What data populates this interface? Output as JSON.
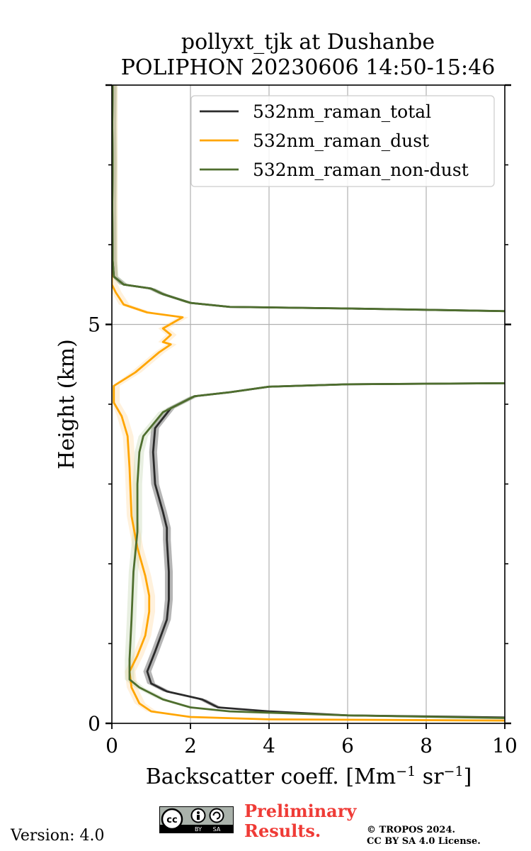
{
  "chart_data": {
    "type": "line",
    "title": "pollyxt_tjk at Dushanbe",
    "subtitle": "POLIPHON 20230606 14:50-15:46",
    "xlabel": "Backscatter coeff. [Mm",
    "xlabel_sup1": "−1",
    "xlabel_mid": " sr",
    "xlabel_sup2": "−1",
    "xlabel_end": "]",
    "ylabel": "Height (km)",
    "xlim": [
      0,
      10
    ],
    "ylim": [
      0,
      8
    ],
    "xticks": [
      0,
      2,
      4,
      6,
      8,
      10
    ],
    "xtick_labels": [
      "0",
      "2",
      "4",
      "6",
      "8",
      "10"
    ],
    "yticks": [
      0,
      5
    ],
    "ytick_labels": [
      "0",
      "5"
    ],
    "yminor_ticks": [
      1,
      2,
      3,
      4,
      6,
      7
    ],
    "grid": true,
    "legend_position": "top-right",
    "series": [
      {
        "name": "532nm_raman_total",
        "color": "#2b2b2b",
        "uncertainty_color": "#2b2b2b",
        "points": [
          [
            12,
            0.06
          ],
          [
            6,
            0.1
          ],
          [
            4,
            0.15
          ],
          [
            2.7,
            0.2
          ],
          [
            2.3,
            0.3
          ],
          [
            1.4,
            0.4
          ],
          [
            1.0,
            0.5
          ],
          [
            0.9,
            0.65
          ],
          [
            1.1,
            0.9
          ],
          [
            1.4,
            1.3
          ],
          [
            1.45,
            1.55
          ],
          [
            1.45,
            1.9
          ],
          [
            1.4,
            2.3
          ],
          [
            1.4,
            2.45
          ],
          [
            1.3,
            2.65
          ],
          [
            1.1,
            3.0
          ],
          [
            1.05,
            3.4
          ],
          [
            1.1,
            3.7
          ],
          [
            1.5,
            3.95
          ],
          [
            2.1,
            4.1
          ],
          [
            3.0,
            4.15
          ],
          [
            4.0,
            4.22
          ],
          [
            6.0,
            4.25
          ],
          [
            12,
            4.27
          ],
          [
            12,
            5.15
          ],
          [
            6.0,
            5.2
          ],
          [
            3.0,
            5.22
          ],
          [
            2.0,
            5.27
          ],
          [
            1.3,
            5.38
          ],
          [
            1.0,
            5.45
          ],
          [
            0.3,
            5.5
          ],
          [
            0.05,
            5.6
          ],
          [
            0.02,
            5.8
          ],
          [
            0.01,
            6.5
          ],
          [
            0.02,
            7.0
          ],
          [
            0.01,
            7.5
          ],
          [
            0.02,
            8.0
          ]
        ],
        "band": [
          0.1,
          0.1
        ]
      },
      {
        "name": "532nm_raman_dust",
        "color": "#ffa500",
        "uncertainty_color": "#ffd89a",
        "points": [
          [
            12,
            0.03
          ],
          [
            4,
            0.05
          ],
          [
            2.0,
            0.08
          ],
          [
            1.0,
            0.15
          ],
          [
            0.7,
            0.25
          ],
          [
            0.5,
            0.45
          ],
          [
            0.45,
            0.65
          ],
          [
            0.65,
            0.85
          ],
          [
            0.85,
            1.1
          ],
          [
            0.95,
            1.4
          ],
          [
            0.95,
            1.6
          ],
          [
            0.85,
            1.85
          ],
          [
            0.65,
            2.2
          ],
          [
            0.5,
            2.6
          ],
          [
            0.45,
            3.2
          ],
          [
            0.4,
            3.6
          ],
          [
            0.25,
            3.85
          ],
          [
            0.05,
            4.02
          ],
          [
            0.05,
            4.23
          ],
          [
            0.6,
            4.4
          ],
          [
            1.2,
            4.65
          ],
          [
            1.5,
            4.75
          ],
          [
            1.3,
            4.78
          ],
          [
            1.5,
            4.87
          ],
          [
            1.3,
            4.95
          ],
          [
            1.8,
            5.09
          ],
          [
            0.9,
            5.15
          ],
          [
            0.3,
            5.25
          ],
          [
            0.1,
            5.4
          ],
          [
            0.0,
            5.5
          ],
          [
            0.0,
            8.0
          ]
        ],
        "band": [
          0.12,
          0.15
        ]
      },
      {
        "name": "532nm_raman_non-dust",
        "color": "#4e6e2e",
        "uncertainty_color": "#bcd0a8",
        "points": [
          [
            12,
            0.05
          ],
          [
            6,
            0.1
          ],
          [
            3.0,
            0.15
          ],
          [
            2.0,
            0.2
          ],
          [
            1.3,
            0.3
          ],
          [
            0.7,
            0.45
          ],
          [
            0.45,
            0.55
          ],
          [
            0.45,
            0.8
          ],
          [
            0.5,
            1.3
          ],
          [
            0.55,
            1.9
          ],
          [
            0.65,
            2.4
          ],
          [
            0.65,
            3.0
          ],
          [
            0.7,
            3.4
          ],
          [
            0.8,
            3.6
          ],
          [
            1.3,
            3.9
          ],
          [
            2.1,
            4.1
          ],
          [
            3.0,
            4.15
          ],
          [
            4.0,
            4.22
          ],
          [
            6.0,
            4.25
          ],
          [
            12,
            4.27
          ],
          [
            12,
            5.15
          ],
          [
            6.0,
            5.2
          ],
          [
            3.0,
            5.22
          ],
          [
            2.0,
            5.27
          ],
          [
            1.3,
            5.38
          ],
          [
            1.0,
            5.45
          ],
          [
            0.3,
            5.5
          ],
          [
            0.05,
            5.6
          ],
          [
            0.02,
            5.8
          ],
          [
            0.01,
            6.5
          ],
          [
            0.02,
            7.0
          ],
          [
            0.01,
            7.5
          ],
          [
            0.02,
            8.0
          ]
        ],
        "band": [
          0.12,
          0.12
        ]
      }
    ]
  },
  "footer": {
    "version": "Version: 4.0",
    "preliminary_line1": "Preliminary",
    "preliminary_line2": "Results.",
    "copyright_line1": "© TROPOS 2024.",
    "copyright_line2": "CC BY SA 4.0 License.",
    "cc_badge_label_by": "BY",
    "cc_badge_label_sa": "SA",
    "cc_badge_icon": "cc-by-sa-icon"
  }
}
